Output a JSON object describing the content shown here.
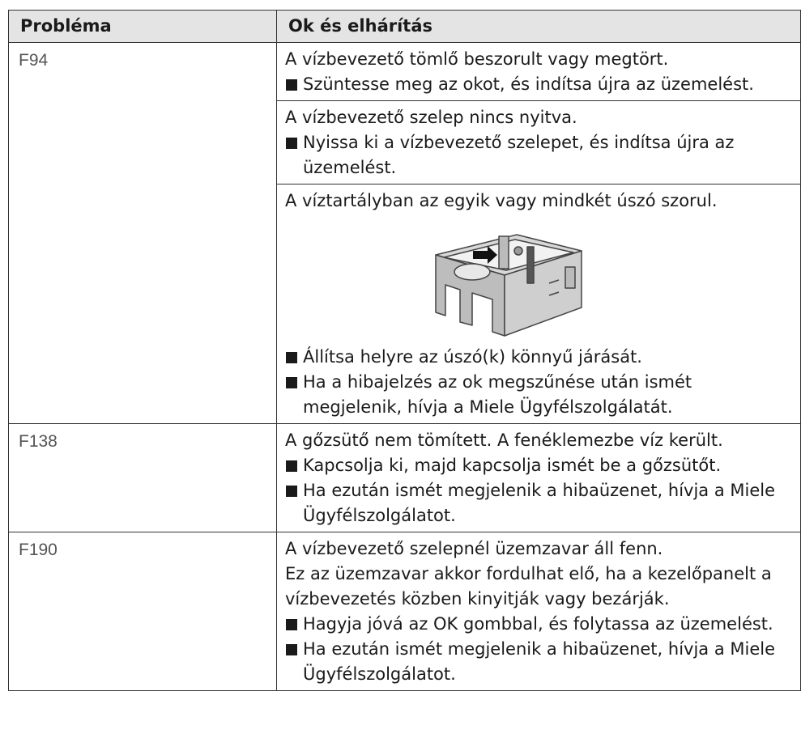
{
  "table": {
    "header": [
      "Probléma",
      "Ok és elhárítás"
    ],
    "rows": [
      {
        "code": "F94",
        "entries": [
          {
            "causes": [
              "A vízbevezető tömlő beszorult vagy megtört."
            ],
            "actions": [
              "Szüntesse meg az okot, és indítsa újra az üzemelést."
            ]
          },
          {
            "causes": [
              "A vízbevezető szelep nincs nyitva."
            ],
            "actions": [
              "Nyissa ki a vízbevezető szelepet, és indítsa újra az üzemelést."
            ]
          },
          {
            "causes": [
              "A víztartályban az egyik vagy mindkét úszó szorul."
            ],
            "actions": [
              "Állítsa helyre az úszó(k) könnyű járását.",
              "Ha a hibajelzés az ok megszűnése után ismét megjelenik, hívja a Miele Ügyfélszolgálatát."
            ]
          }
        ]
      },
      {
        "code": "F138",
        "entries": [
          {
            "causes": [
              "A gőzsütő nem tömített. A fenéklemezbe víz került."
            ],
            "actions": [
              "Kapcsolja ki, majd kapcsolja ismét be a gőzsütőt.",
              "Ha ezután ismét megjelenik a hibaüzenet, hívja a Miele Ügyfélszolgálatot."
            ]
          }
        ]
      },
      {
        "code": "F190",
        "entries": [
          {
            "causes": [
              "A vízbevezető szelepnél üzemzavar áll fenn.",
              "Ez az üzemzavar akkor fordulhat elő, ha a kezelőpanelt a vízbevezetés közben kinyitják vagy bezárják."
            ],
            "actions": [
              "Hagyja jóvá az OK gombbal, és folytassa az üzemelést.",
              "Ha ezután ismét megjelenik a hibaüzenet, hívja a Miele Ügyfélszolgálatot."
            ]
          }
        ]
      }
    ]
  }
}
